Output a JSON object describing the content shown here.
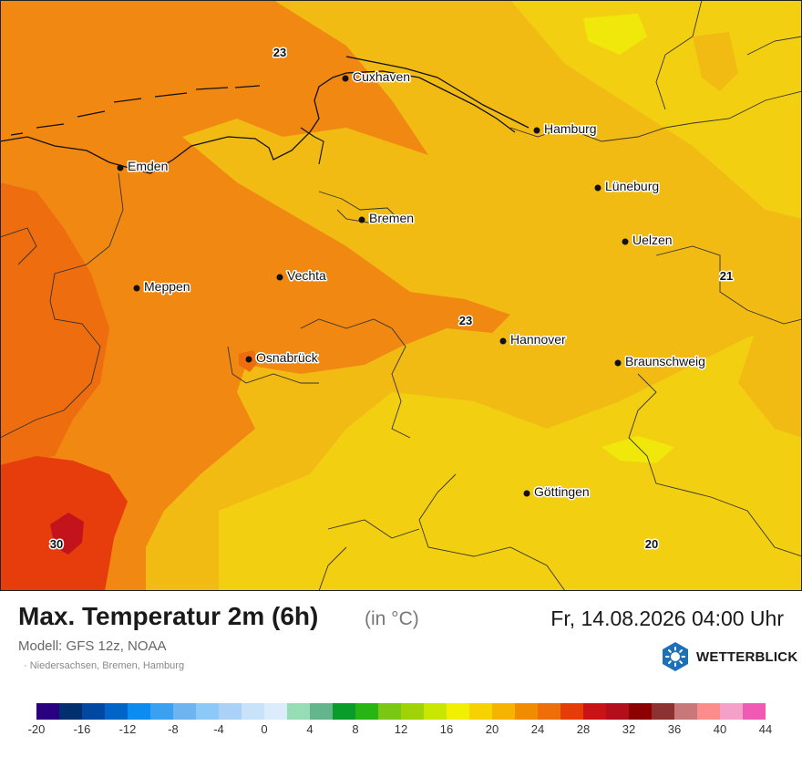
{
  "header": {
    "title": "Max. Temperatur 2m (6h)",
    "unit": "(in °C)",
    "datetime": "Fr, 14.08.2026 04:00 Uhr",
    "model": "Modell: GFS 12z, NOAA",
    "region": "· Niedersachsen, Bremen, Hamburg"
  },
  "brand": {
    "name": "WETTERBLICK",
    "icon": "sun-logo-icon"
  },
  "cities": [
    {
      "name": "Cuxhaven"
    },
    {
      "name": "Hamburg"
    },
    {
      "name": "Emden"
    },
    {
      "name": "Lüneburg"
    },
    {
      "name": "Bremen"
    },
    {
      "name": "Uelzen"
    },
    {
      "name": "Vechta"
    },
    {
      "name": "Meppen"
    },
    {
      "name": "Hannover"
    },
    {
      "name": "Osnabrück"
    },
    {
      "name": "Braunschweig"
    },
    {
      "name": "Göttingen"
    }
  ],
  "temps": [
    "23",
    "23",
    "21",
    "30",
    "20"
  ],
  "legend": {
    "colors": [
      "#2a0080",
      "#00306e",
      "#0048a0",
      "#0064c8",
      "#0a8cf0",
      "#3ca0f0",
      "#6eb4f0",
      "#8cc8f8",
      "#aad2f8",
      "#c8e2fa",
      "#dcecfc",
      "#96dcb4",
      "#64b48c",
      "#0a9b2a",
      "#28b414",
      "#78c814",
      "#a0d20a",
      "#c8e600",
      "#f0f000",
      "#f5d200",
      "#f5b400",
      "#f08c00",
      "#f06e0a",
      "#e63c0a",
      "#c81414",
      "#b40f19",
      "#8c0000",
      "#8c3232",
      "#c87878",
      "#fa8c8c",
      "#f5a0c8",
      "#f05ab4"
    ],
    "labels": [
      "-20",
      "-16",
      "-12",
      "-8",
      "-4",
      "0",
      "4",
      "8",
      "12",
      "16",
      "20",
      "24",
      "28",
      "32",
      "36",
      "40",
      "44"
    ]
  }
}
